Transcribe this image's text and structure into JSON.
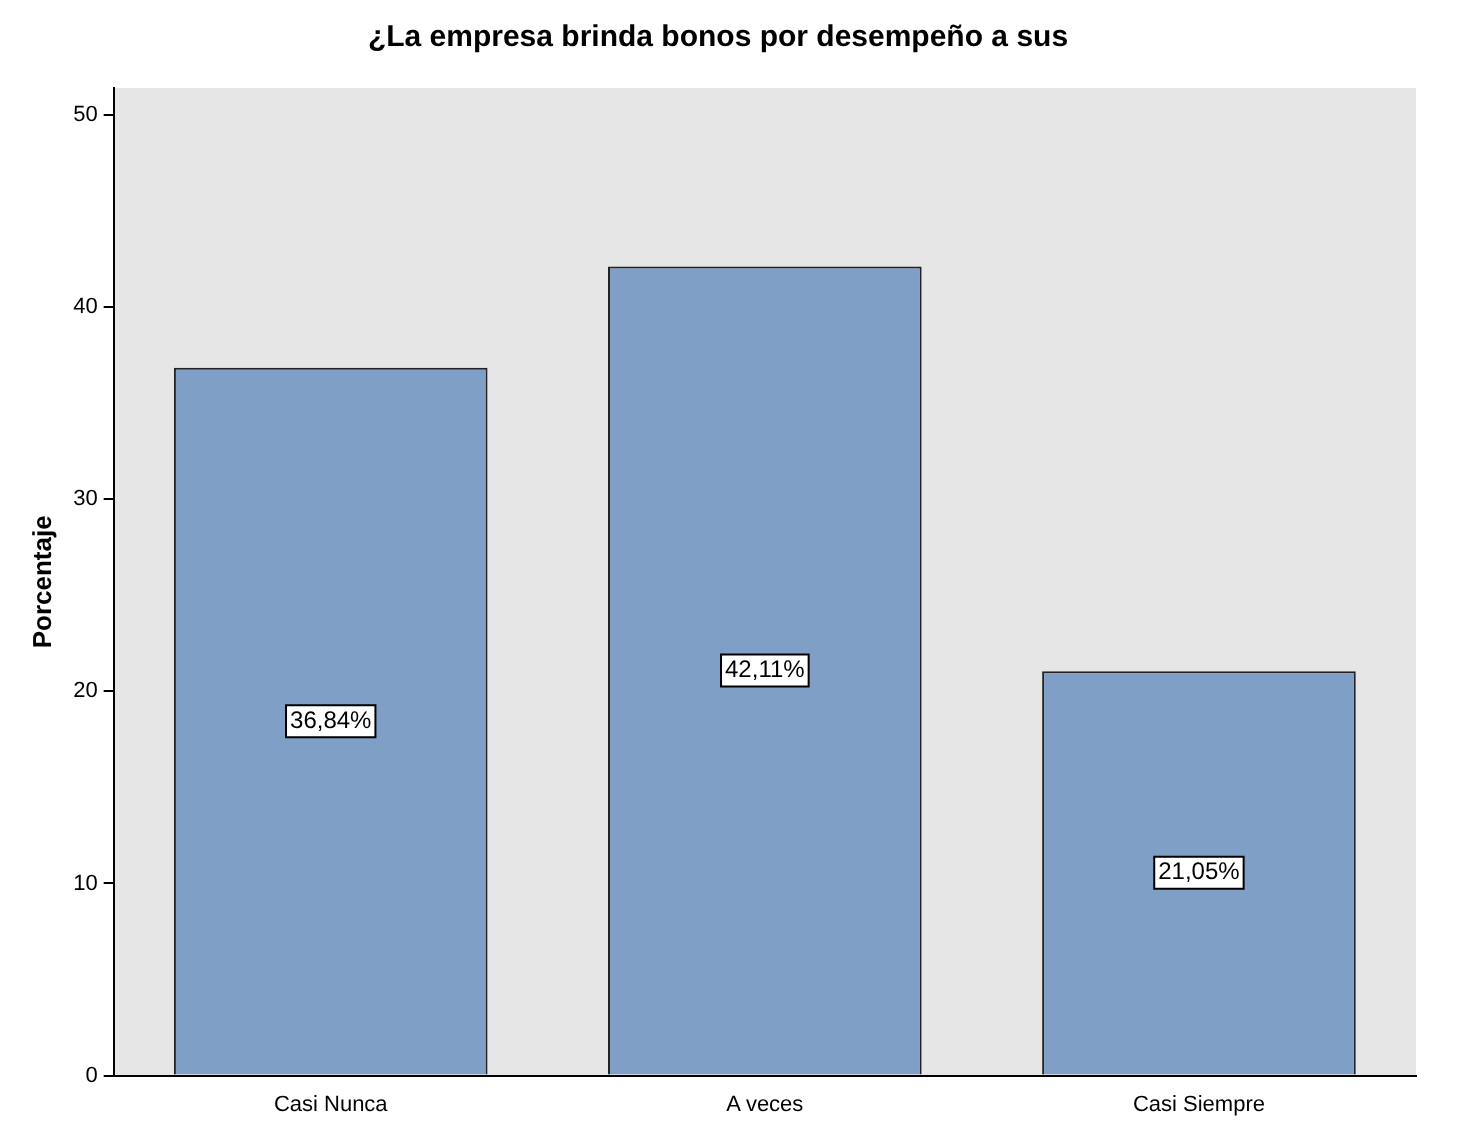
{
  "chart_data": {
    "type": "bar",
    "title": "¿La empresa brinda bonos por desempeño a sus",
    "ylabel": "Porcentaje",
    "categories": [
      "Casi Nunca",
      "A veces",
      "Casi Siempre"
    ],
    "values": [
      36.84,
      42.11,
      21.05
    ],
    "color": "#7f9fc6",
    "value_labels": [
      "36,84%",
      "42,11%",
      "21,05%"
    ],
    "ylim": [
      0,
      51.4
    ],
    "yticks": [
      0,
      10,
      20,
      30,
      40,
      50
    ],
    "grid": false,
    "legend": false
  }
}
